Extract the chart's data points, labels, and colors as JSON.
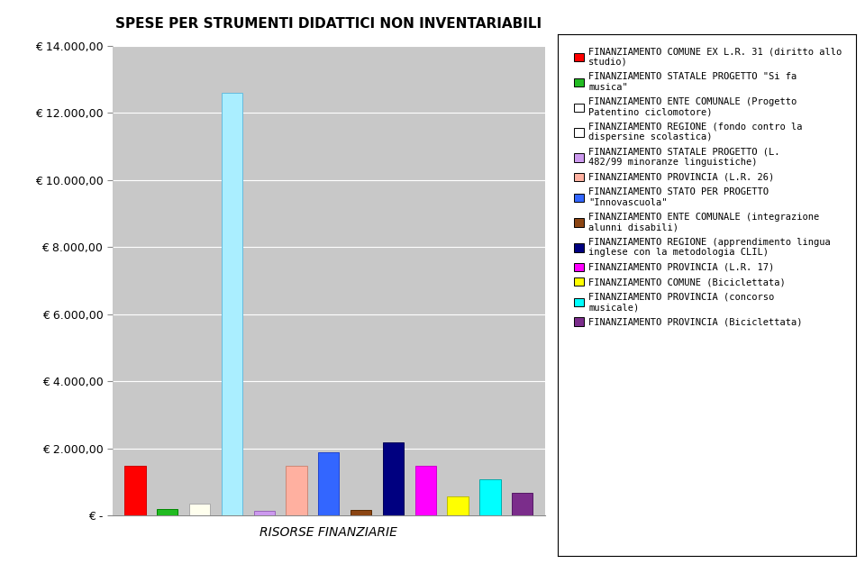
{
  "title": "SPESE PER STRUMENTI DIDATTICI NON INVENTARIABILI",
  "xlabel": "RISORSE FINANZIARIE",
  "ylim": [
    0,
    14000
  ],
  "yticks": [
    0,
    2000,
    4000,
    6000,
    8000,
    10000,
    12000,
    14000
  ],
  "ytick_labels": [
    "€ -",
    "€ 2.000,00",
    "€ 4.000,00",
    "€ 6.000,00",
    "€ 8.000,00",
    "€ 10.000,00",
    "€ 12.000,00",
    "€ 14.000,00"
  ],
  "bar_values": [
    1480,
    200,
    360,
    12600,
    145,
    1480,
    1880,
    180,
    2180,
    1480,
    580,
    1080,
    680
  ],
  "bar_colors": [
    "#FF0000",
    "#22BB22",
    "#FFFFEE",
    "#AAEEFF",
    "#CC99EE",
    "#FFB0A0",
    "#3366FF",
    "#8B4513",
    "#000080",
    "#FF00FF",
    "#FFFF00",
    "#00FFFF",
    "#7B2D8B"
  ],
  "bar_edgecolors": [
    "#CC0000",
    "#008800",
    "#AAAAAA",
    "#66BBDD",
    "#9966BB",
    "#CC8877",
    "#2244CC",
    "#5A2A00",
    "#000055",
    "#CC00CC",
    "#BBBB00",
    "#00AAAA",
    "#551866"
  ],
  "legend_labels": [
    "FINANZIAMENTO COMUNE EX L.R. 31 (diritto allo\nstudio)",
    "FINANZIAMENTO STATALE PROGETTO \"Si fa\nmusica\"",
    "FINANZIAMENTO ENTE COMUNALE (Progetto\nPatentino ciclomotore)",
    "FINANZIAMENTO REGIONE (fondo contro la\ndispersine scolastica)",
    "FINANZIAMENTO STATALE PROGETTO (L.\n482/99 minoranze linguistiche)",
    "FINANZIAMENTO PROVINCIA (L.R. 26)",
    "FINANZIAMENTO STATO PER PROGETTO\n\"Innovascuola\"",
    "FINANZIAMENTO ENTE COMUNALE (integrazione\nalunni disabili)",
    "FINANZIAMENTO REGIONE (apprendimento lingua\ninglese con la metodologia CLIL)",
    "FINANZIAMENTO PROVINCIA (L.R. 17)",
    "FINANZIAMENTO COMUNE (Biciclettata)",
    "FINANZIAMENTO PROVINCIA (concorso\nmusicale)",
    "FINANZIAMENTO PROVINCIA (Biciclettata)"
  ],
  "legend_face_colors": [
    "#FF0000",
    "#22BB22",
    "#FFFFFF",
    "#FFFFFF",
    "#CC99EE",
    "#FFB0A0",
    "#3366FF",
    "#8B4513",
    "#000080",
    "#FF00FF",
    "#FFFF00",
    "#00FFFF",
    "#7B2D8B"
  ],
  "fig_facecolor": "#FFFFFF",
  "plot_facecolor": "#C8C8C8",
  "title_fontsize": 11,
  "legend_fontsize": 7.5,
  "xlabel_fontsize": 10,
  "ytick_fontsize": 9,
  "bar_width": 0.65
}
